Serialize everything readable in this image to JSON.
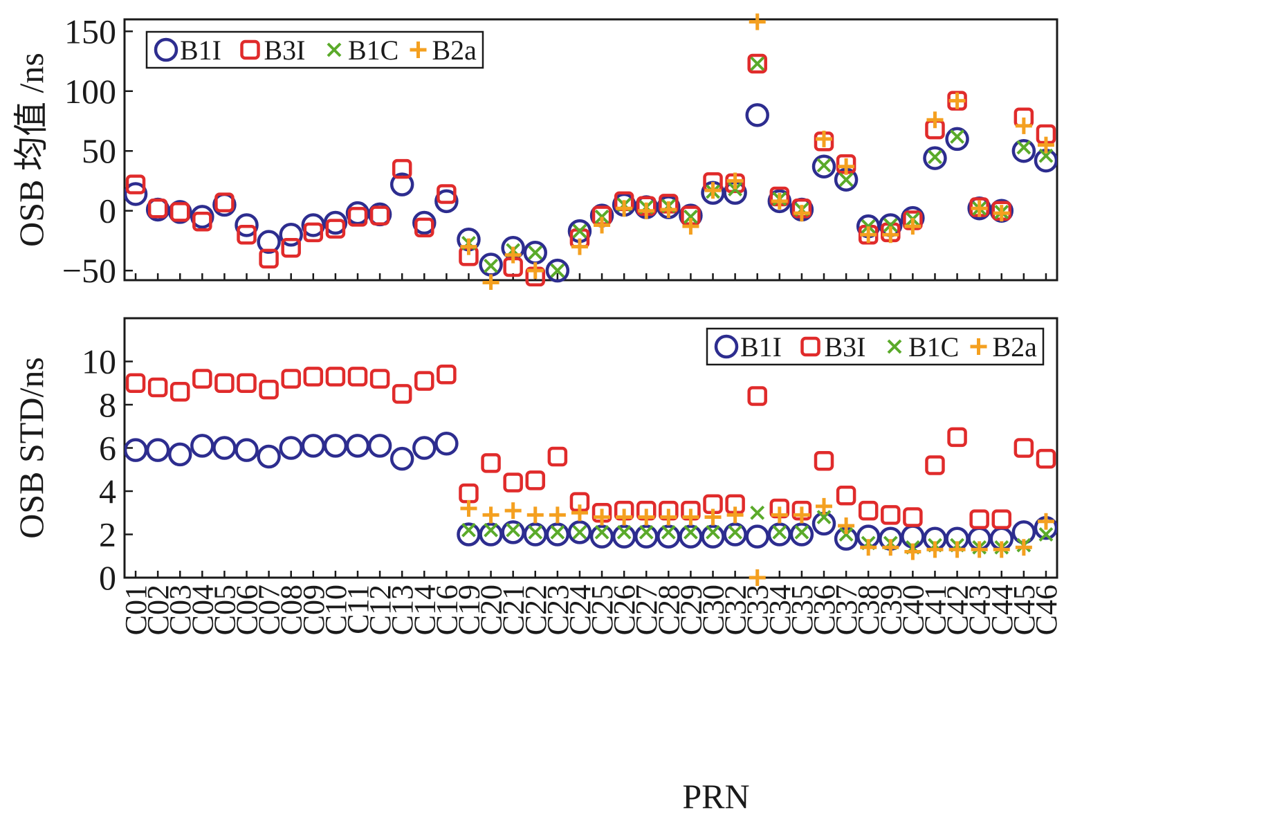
{
  "chart_data": [
    {
      "type": "scatter",
      "panel": "top",
      "ylabel": "OSB 均值 /ns",
      "xlabel": "",
      "ylim": [
        -58,
        160
      ],
      "yticks": [
        -50,
        0,
        50,
        100,
        150
      ],
      "legend_position": "top-left",
      "categories": [
        "C01",
        "C02",
        "C03",
        "C04",
        "C05",
        "C06",
        "C07",
        "C08",
        "C09",
        "C10",
        "C11",
        "C12",
        "C13",
        "C14",
        "C16",
        "C19",
        "C20",
        "C21",
        "C22",
        "C23",
        "C24",
        "C25",
        "C26",
        "C27",
        "C28",
        "C29",
        "C30",
        "C32",
        "C33",
        "C34",
        "C35",
        "C36",
        "C37",
        "C38",
        "C39",
        "C40",
        "C41",
        "C42",
        "C43",
        "C44",
        "C45",
        "C46"
      ],
      "series": [
        {
          "name": "B1I",
          "marker": "circle",
          "color": "#2d2d8f",
          "values": [
            14,
            1,
            -1,
            -5,
            5,
            -12,
            -26,
            -20,
            -12,
            -10,
            -2,
            -3,
            22,
            -10,
            8,
            -24,
            -45,
            -31,
            -35,
            -50,
            -17,
            -4,
            5,
            3,
            3,
            -4,
            15,
            15,
            80,
            8,
            1,
            37,
            26,
            -13,
            -12,
            -6,
            44,
            60,
            2,
            0,
            50,
            42
          ]
        },
        {
          "name": "B3I",
          "marker": "square",
          "color": "#e02b2b",
          "values": [
            22,
            2,
            -1,
            -9,
            7,
            -20,
            -40,
            -31,
            -18,
            -15,
            -5,
            -4,
            35,
            -14,
            14,
            -38,
            null,
            -47,
            -55,
            null,
            -23,
            -4,
            8,
            4,
            6,
            -4,
            24,
            23,
            123,
            12,
            2,
            58,
            39,
            -20,
            -18,
            -8,
            68,
            92,
            3,
            0,
            78,
            64
          ]
        },
        {
          "name": "B1C",
          "marker": "x",
          "color": "#5aaa2a",
          "values": [
            null,
            null,
            null,
            null,
            null,
            null,
            null,
            null,
            null,
            null,
            null,
            null,
            null,
            null,
            null,
            -27,
            -46,
            -33,
            -35,
            -50,
            -17,
            -5,
            5,
            3,
            4,
            -5,
            16,
            18,
            123,
            10,
            1,
            38,
            26,
            -13,
            -12,
            -7,
            45,
            62,
            2,
            -1,
            53,
            46
          ]
        },
        {
          "name": "B2a",
          "marker": "plus",
          "color": "#f4a020",
          "values": [
            null,
            null,
            null,
            null,
            null,
            null,
            null,
            null,
            null,
            null,
            null,
            null,
            null,
            null,
            null,
            -30,
            -60,
            -37,
            -50,
            null,
            -30,
            -12,
            2,
            0,
            1,
            -13,
            17,
            25,
            158,
            8,
            -2,
            60,
            37,
            -20,
            -20,
            -13,
            76,
            92,
            2,
            -2,
            71,
            55
          ]
        }
      ]
    },
    {
      "type": "scatter",
      "panel": "bottom",
      "ylabel": "OSB STD/ns",
      "xlabel": "PRN",
      "ylim": [
        0,
        12
      ],
      "yticks": [
        0,
        2,
        4,
        6,
        8,
        10
      ],
      "legend_position": "top-right",
      "categories": [
        "C01",
        "C02",
        "C03",
        "C04",
        "C05",
        "C06",
        "C07",
        "C08",
        "C09",
        "C10",
        "C11",
        "C12",
        "C13",
        "C14",
        "C16",
        "C19",
        "C20",
        "C21",
        "C22",
        "C23",
        "C24",
        "C25",
        "C26",
        "C27",
        "C28",
        "C29",
        "C30",
        "C32",
        "C33",
        "C34",
        "C35",
        "C36",
        "C37",
        "C38",
        "C39",
        "C40",
        "C41",
        "C42",
        "C43",
        "C44",
        "C45",
        "C46"
      ],
      "series": [
        {
          "name": "B1I",
          "marker": "circle",
          "color": "#2d2d8f",
          "values": [
            5.9,
            5.9,
            5.7,
            6.1,
            6.0,
            5.9,
            5.6,
            6.0,
            6.1,
            6.1,
            6.1,
            6.1,
            5.5,
            6.0,
            6.2,
            2.0,
            2.0,
            2.1,
            2.0,
            2.0,
            2.1,
            1.9,
            1.9,
            1.9,
            1.9,
            1.9,
            1.9,
            2.0,
            1.9,
            2.0,
            2.0,
            2.5,
            1.8,
            1.9,
            1.8,
            1.9,
            1.8,
            1.8,
            1.8,
            1.8,
            2.1,
            2.3
          ]
        },
        {
          "name": "B3I",
          "marker": "square",
          "color": "#e02b2b",
          "values": [
            9.0,
            8.8,
            8.6,
            9.2,
            9.0,
            9.0,
            8.7,
            9.2,
            9.3,
            9.3,
            9.3,
            9.2,
            8.5,
            9.1,
            9.4,
            3.9,
            5.3,
            4.4,
            4.5,
            5.6,
            3.5,
            3.0,
            3.1,
            3.1,
            3.1,
            3.1,
            3.4,
            3.4,
            8.4,
            3.2,
            3.1,
            5.4,
            3.8,
            3.1,
            2.9,
            2.8,
            5.2,
            6.5,
            2.7,
            2.7,
            6.0,
            5.5
          ]
        },
        {
          "name": "B1C",
          "marker": "x",
          "color": "#5aaa2a",
          "values": [
            null,
            null,
            null,
            null,
            null,
            null,
            null,
            null,
            null,
            null,
            null,
            null,
            null,
            null,
            null,
            2.2,
            2.2,
            2.2,
            2.1,
            2.1,
            2.1,
            2.1,
            2.1,
            2.1,
            2.1,
            2.1,
            2.1,
            2.1,
            3.0,
            2.1,
            2.1,
            2.8,
            2.0,
            1.6,
            1.6,
            1.4,
            1.5,
            1.5,
            1.4,
            1.4,
            1.5,
            2.0
          ]
        },
        {
          "name": "B2a",
          "marker": "plus",
          "color": "#f4a020",
          "values": [
            null,
            null,
            null,
            null,
            null,
            null,
            null,
            null,
            null,
            null,
            null,
            null,
            null,
            null,
            null,
            3.2,
            2.9,
            3.1,
            2.9,
            2.9,
            3.0,
            2.8,
            2.8,
            2.8,
            2.8,
            2.8,
            2.8,
            2.9,
            0.0,
            2.9,
            2.9,
            3.3,
            2.4,
            1.4,
            1.4,
            1.2,
            1.3,
            1.3,
            1.3,
            1.3,
            1.4,
            2.6
          ]
        }
      ]
    }
  ]
}
